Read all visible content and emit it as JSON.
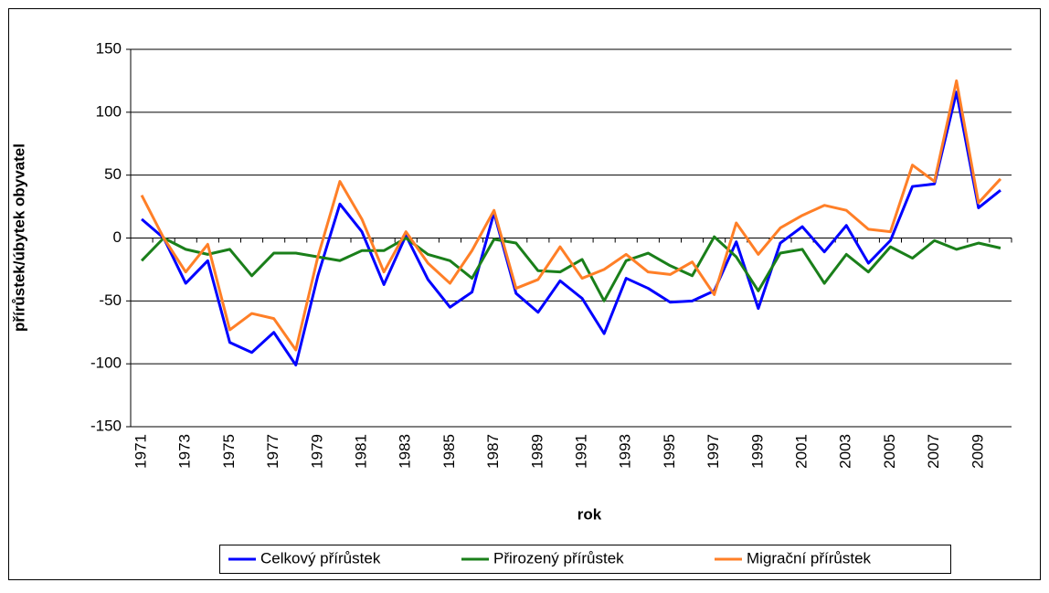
{
  "chart_data": {
    "type": "line",
    "x_label": "rok",
    "y_label": "přírůstek/úbytek obyvatel",
    "categories": [
      "1971",
      null,
      "1973",
      null,
      "1975",
      null,
      "1977",
      null,
      "1979",
      null,
      "1981",
      null,
      "1983",
      null,
      "1985",
      null,
      "1987",
      null,
      "1989",
      null,
      "1991",
      null,
      "1993",
      null,
      "1995",
      null,
      "1997",
      null,
      "1999",
      null,
      "2001",
      null,
      "2003",
      null,
      "2005",
      null,
      "2007",
      null,
      "2009",
      null
    ],
    "series": [
      {
        "name": "Celkový přírůstek",
        "color": "#0000ff",
        "values": [
          15,
          0,
          -36,
          -18,
          -83,
          -91,
          -75,
          -101,
          -30,
          27,
          5,
          -37,
          2,
          -33,
          -55,
          -43,
          20,
          -44,
          -59,
          -34,
          -48,
          -76,
          -32,
          -40,
          -51,
          -50,
          -42,
          -3,
          -56,
          -4,
          9,
          -11,
          10,
          -20,
          -2,
          41,
          43,
          116,
          24,
          38
        ]
      },
      {
        "name": "Přirozený přírůstek",
        "color": "#1a7f1a",
        "values": [
          -18,
          0,
          -9,
          -13,
          -9,
          -30,
          -12,
          -12,
          -15,
          -18,
          -10,
          -10,
          0,
          -13,
          -18,
          -32,
          -1,
          -4,
          -26,
          -27,
          -17,
          -50,
          -18,
          -12,
          -22,
          -30,
          1,
          -15,
          -42,
          -12,
          -9,
          -36,
          -13,
          -27,
          -7,
          -16,
          -2,
          -9,
          -4,
          -8
        ]
      },
      {
        "name": "Migrační přírůstek",
        "color": "#ff7f27",
        "values": [
          34,
          0,
          -27,
          -5,
          -73,
          -60,
          -64,
          -89,
          -15,
          45,
          15,
          -27,
          5,
          -20,
          -36,
          -10,
          22,
          -40,
          -33,
          -7,
          -32,
          -25,
          -13,
          -27,
          -29,
          -19,
          -45,
          12,
          -13,
          8,
          18,
          26,
          22,
          7,
          5,
          58,
          45,
          125,
          28,
          47
        ]
      }
    ],
    "ylim": [
      -150,
      150
    ],
    "yticks": [
      -150,
      -100,
      -50,
      0,
      50,
      100,
      150
    ],
    "grid": true,
    "legend": "bottom"
  }
}
